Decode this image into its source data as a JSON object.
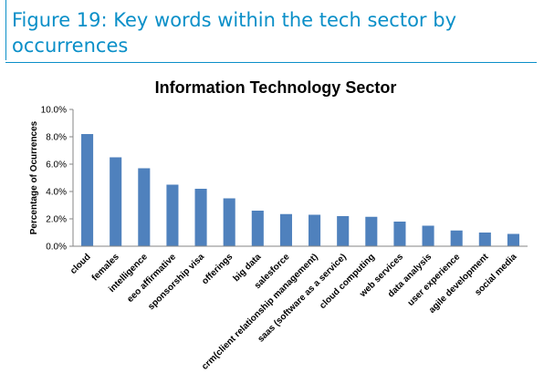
{
  "figure": {
    "title": "Figure 19: Key words within the tech sector by occurrences"
  },
  "chart_data": {
    "type": "bar",
    "title": "Information Technology Sector",
    "xlabel": "",
    "ylabel": "Percentage of Ocurrences",
    "ylim": [
      0,
      10
    ],
    "y_ticks": [
      "0.0%",
      "2.0%",
      "4.0%",
      "6.0%",
      "8.0%",
      "10.0%"
    ],
    "grid": false,
    "legend": "none",
    "color": "#4f81bd",
    "categories": [
      "cloud",
      "females",
      "intelligence",
      "eeo affirmative",
      "sponsorship visa",
      "offerings",
      "big data",
      "salesforce",
      "crm(client relationship management)",
      "saas (software as a service)",
      "cloud computing",
      "web services",
      "data analysis",
      "user experience",
      "agile development",
      "social media"
    ],
    "values": [
      8.2,
      6.5,
      5.7,
      4.5,
      4.2,
      3.5,
      2.6,
      2.35,
      2.3,
      2.2,
      2.15,
      1.8,
      1.5,
      1.15,
      1.0,
      0.9
    ]
  }
}
